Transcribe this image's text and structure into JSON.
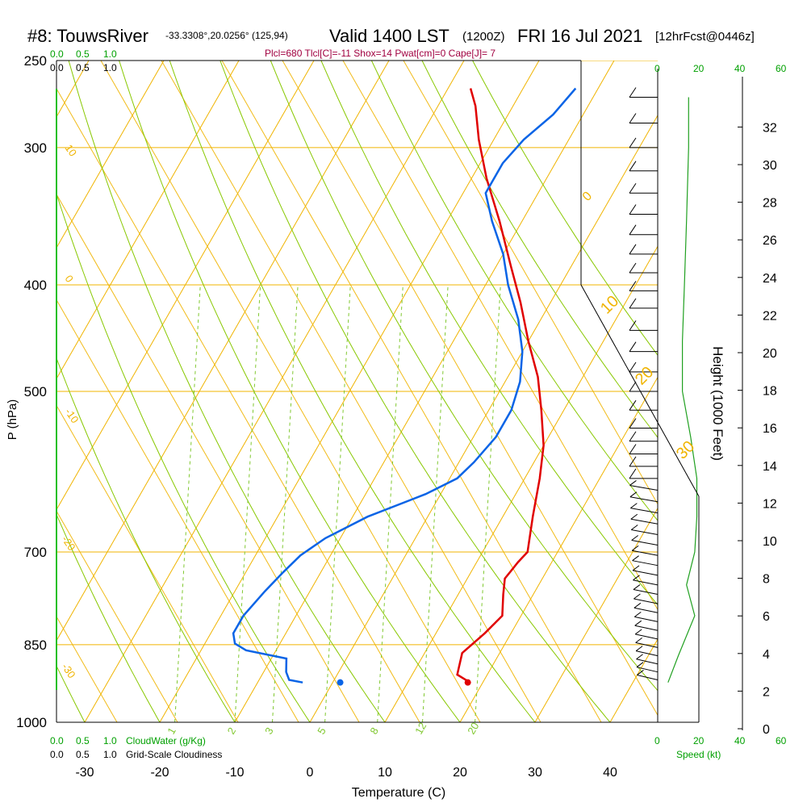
{
  "header": {
    "station": "#8: TouwsRiver",
    "coords": "-33.3308°,20.0256° (125,94)",
    "valid": "Valid 1400 LST",
    "zulu": "(1200Z)",
    "date": "FRI 16 Jul 2021",
    "forecast": "[12hrFcst@0446z]",
    "indices": "Plcl=680 Tlcl[C]=-11 Shox=14 Pwat[cm]=0 Cape[J]= 7"
  },
  "labels": {
    "cloudwater": "CloudWater (g/Kg)",
    "cloudiness": "Grid-Scale Cloudiness",
    "speed": "Speed (kt)",
    "scale_green": [
      "0.0",
      "0.5",
      "1.0"
    ],
    "scale_black": [
      "0.0",
      "0.5",
      "1.0"
    ],
    "speed_ticks": [
      "0",
      "20",
      "40",
      "60"
    ]
  },
  "colors": {
    "isotherm": "#f0b400",
    "dry_adiabat": "#88c800",
    "mixing_ratio": "#80c830",
    "temperature": "#e00000",
    "dewpoint": "#0a64e6",
    "header_indices": "#a00040",
    "green_label": "#00a000"
  },
  "chart_data": {
    "type": "line",
    "title": "#8: TouwsRiver Valid 1400 LST FRI 16 Jul 2021",
    "xlabel": "Temperature (C)",
    "ylabel": "P (hPa)",
    "y2label": "Height (1000 Feet)",
    "xlim": [
      -35,
      45
    ],
    "x_ticks": [
      -30,
      -20,
      -10,
      0,
      10,
      20,
      30,
      40
    ],
    "ylim": [
      1000,
      250
    ],
    "y_scale": "log",
    "y_ticks": [
      250,
      300,
      400,
      500,
      700,
      850,
      1000
    ],
    "height_ticks": [
      0,
      2,
      4,
      6,
      8,
      10,
      12,
      14,
      16,
      18,
      20,
      22,
      24,
      26,
      28,
      30,
      32
    ],
    "dry_adiabat_labels": [
      "10",
      "0",
      "-10",
      "-20",
      "-30"
    ],
    "moist_adiabat_labels": [
      "0",
      "10",
      "20",
      "30"
    ],
    "mixing_ratio_labels": [
      "1",
      "2",
      "3",
      "5",
      "8",
      "12",
      "20"
    ],
    "series": [
      {
        "name": "Temperature",
        "points": [
          [
            18,
            918
          ],
          [
            16,
            905
          ],
          [
            15,
            865
          ],
          [
            16.5,
            830
          ],
          [
            17.5,
            800
          ],
          [
            16,
            765
          ],
          [
            15,
            740
          ],
          [
            15.5,
            715
          ],
          [
            16,
            700
          ],
          [
            14,
            650
          ],
          [
            12,
            600
          ],
          [
            10,
            560
          ],
          [
            7,
            520
          ],
          [
            4,
            485
          ],
          [
            0,
            450
          ],
          [
            -4,
            415
          ],
          [
            -8,
            385
          ],
          [
            -13,
            350
          ],
          [
            -18,
            320
          ],
          [
            -22,
            295
          ],
          [
            -25,
            275
          ],
          [
            -27,
            265
          ]
        ]
      },
      {
        "name": "Dewpoint",
        "points": [
          [
            -4,
            920
          ],
          [
            -6,
            915
          ],
          [
            -7,
            900
          ],
          [
            -8,
            875
          ],
          [
            -14,
            860
          ],
          [
            -16,
            848
          ],
          [
            -17,
            830
          ],
          [
            -17,
            800
          ],
          [
            -16,
            760
          ],
          [
            -15,
            730
          ],
          [
            -14,
            705
          ],
          [
            -12,
            680
          ],
          [
            -8,
            650
          ],
          [
            -2,
            620
          ],
          [
            1,
            600
          ],
          [
            2,
            580
          ],
          [
            3,
            550
          ],
          [
            3,
            520
          ],
          [
            2,
            490
          ],
          [
            0,
            460
          ],
          [
            -3,
            430
          ],
          [
            -7,
            400
          ],
          [
            -10,
            375
          ],
          [
            -14,
            350
          ],
          [
            -17,
            330
          ],
          [
            -17,
            310
          ],
          [
            -16,
            295
          ],
          [
            -14,
            280
          ],
          [
            -13,
            265
          ]
        ]
      }
    ],
    "parcel_start": {
      "t": 18,
      "td": 1,
      "p": 920
    },
    "wind_speed_kt": [
      {
        "p": 920,
        "kt": 5
      },
      {
        "p": 870,
        "kt": 10
      },
      {
        "p": 800,
        "kt": 18
      },
      {
        "p": 750,
        "kt": 14
      },
      {
        "p": 700,
        "kt": 18
      },
      {
        "p": 650,
        "kt": 19
      },
      {
        "p": 600,
        "kt": 19
      },
      {
        "p": 550,
        "kt": 16
      },
      {
        "p": 500,
        "kt": 12
      },
      {
        "p": 450,
        "kt": 12
      },
      {
        "p": 400,
        "kt": 13
      },
      {
        "p": 350,
        "kt": 14
      },
      {
        "p": 300,
        "kt": 15
      },
      {
        "p": 270,
        "kt": 15
      }
    ],
    "wind_barb_levels": [
      270,
      285,
      300,
      315,
      330,
      345,
      360,
      375,
      390,
      405,
      420,
      440,
      460,
      480,
      500,
      520,
      540,
      555,
      570,
      585,
      600,
      615,
      630,
      645,
      660,
      675,
      690,
      705,
      720,
      735,
      750,
      765,
      780,
      795,
      810,
      825,
      840,
      855,
      870,
      885,
      900,
      915
    ]
  }
}
